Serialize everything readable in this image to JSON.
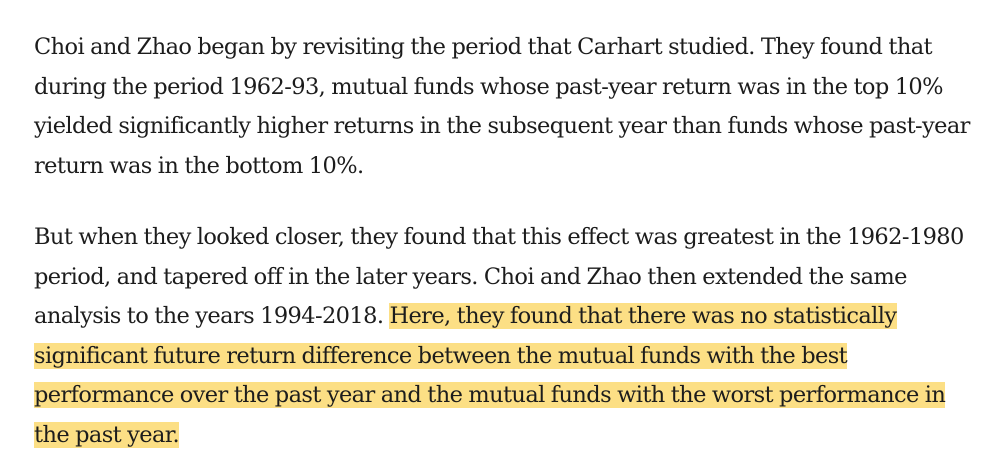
{
  "article": {
    "paragraph1": {
      "lines": [
        "Choi and Zhao began by revisiting the period that Carhart studied. They found that",
        "during the period 1962-93, mutual funds whose past-year return was in the top 10%",
        "yielded significantly higher returns in the subsequent year than funds whose past-year",
        "return was in the bottom 10%."
      ]
    },
    "paragraph2": {
      "line1": "But when they looked closer, they found that this effect was greatest in the 1962-1980",
      "line2": "period, and tapered off in the later years. Choi and Zhao then extended the same",
      "line3_plain": "analysis to the years 1994-2018. ",
      "line3_highlight": "Here, they found that there was no statistically",
      "line4_highlight": "significant future return difference between the mutual funds with the best",
      "line5_highlight": "performance over the past year and the mutual funds with the worst performance in",
      "line6_highlight": "the past year.",
      "highlight_color": "#fcdf85"
    }
  }
}
